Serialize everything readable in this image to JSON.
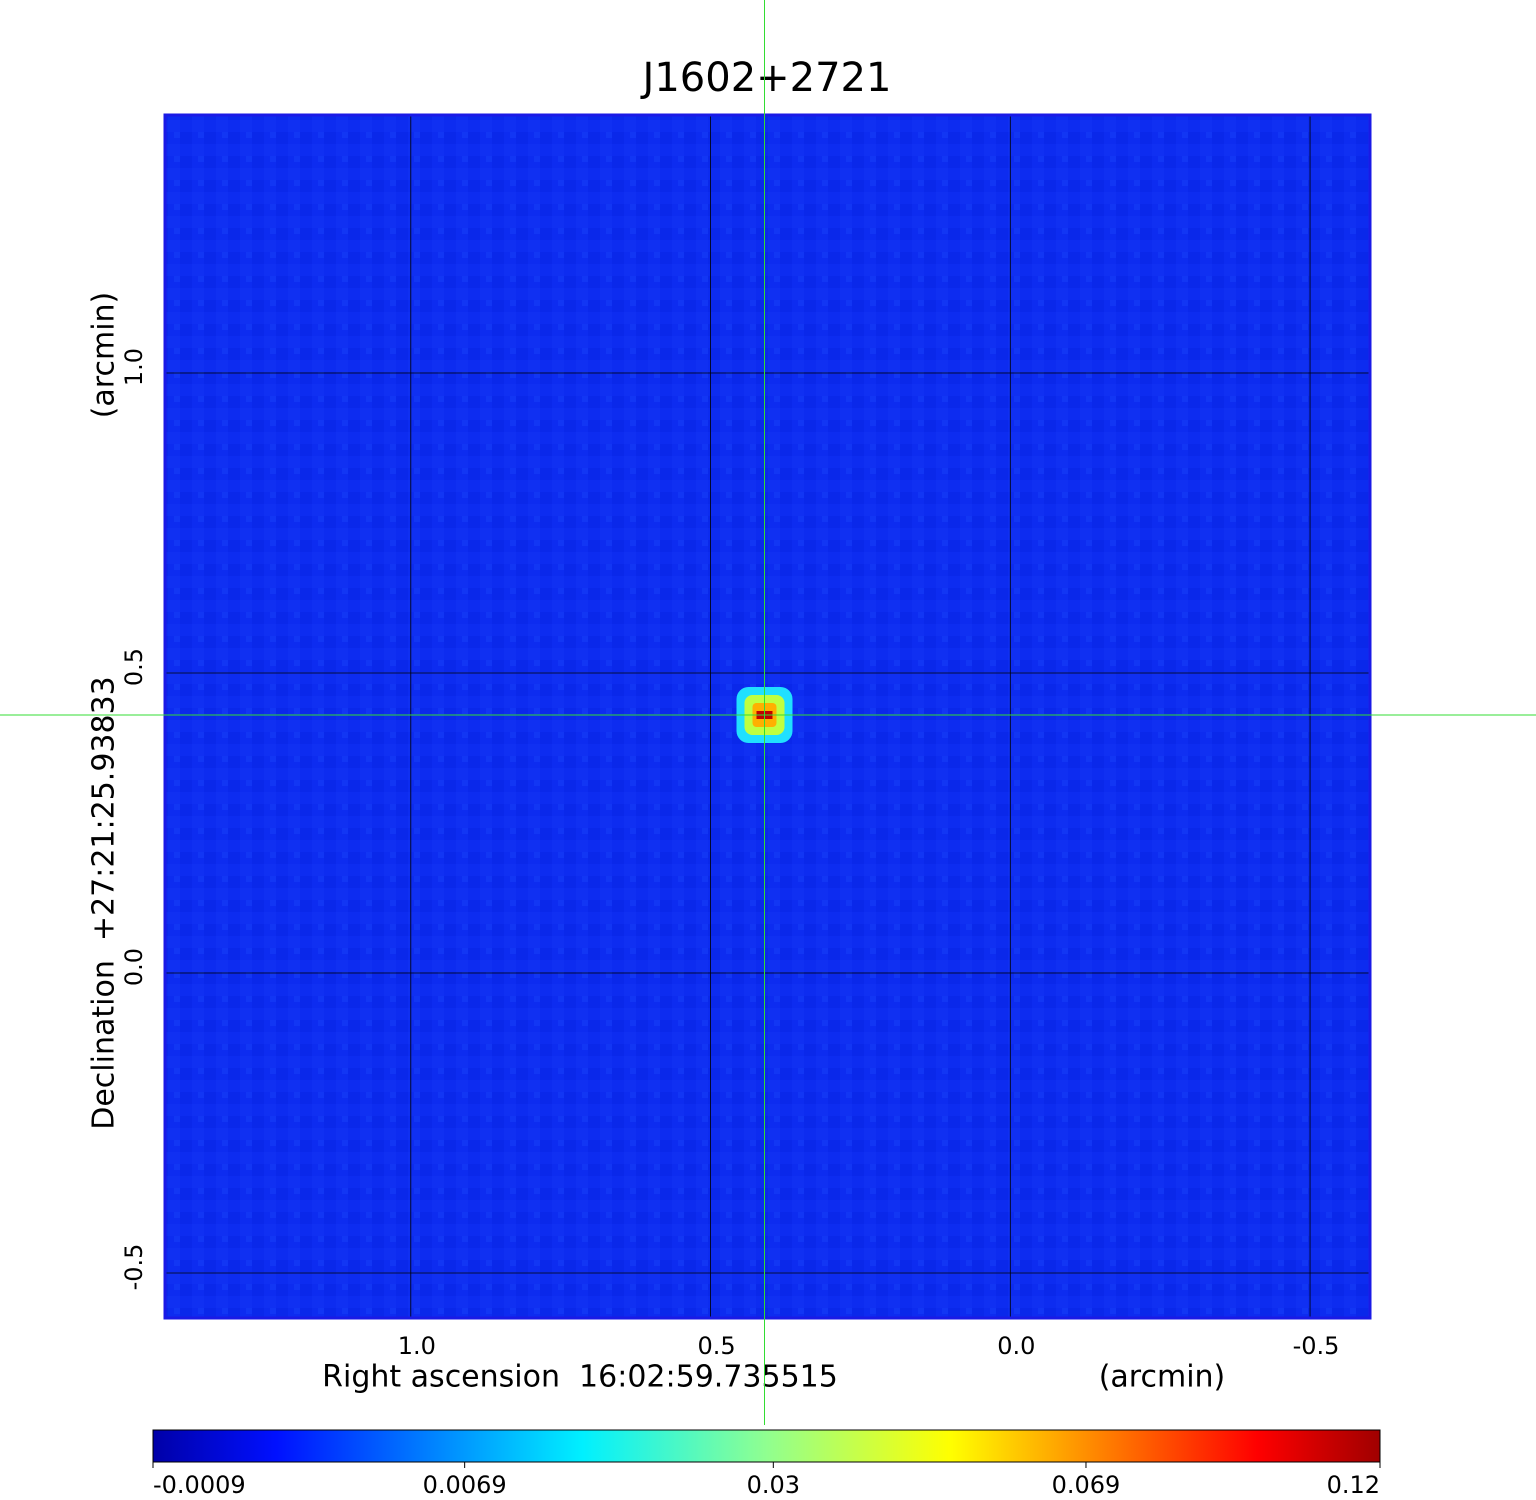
{
  "chart_data": {
    "type": "image",
    "title": "J1602+2721",
    "xlabel": "Right ascension  16:02:59.735515",
    "xunit": "(arcmin)",
    "ylabel": "Declination  +27:21:25.93833",
    "yunit": "(arcmin)",
    "xlim": [
      1.41,
      -0.6
    ],
    "ylim": [
      -0.575,
      1.43
    ],
    "xticks": [
      {
        "value": 1,
        "label": "1.0"
      },
      0.5,
      {
        "value": 0,
        "label": "0.0"
      },
      -0.5
    ],
    "yticks": [
      {
        "value": 1,
        "label": "1.0"
      },
      0.5,
      {
        "value": 0,
        "label": "0.0"
      },
      -0.5
    ],
    "grid": true,
    "marker": {
      "x": 0.41,
      "y": 0.43,
      "color": "#33dd33"
    },
    "source": {
      "x": 0.41,
      "y": 0.43,
      "peak": 0.12
    },
    "clim": [
      -0.0009,
      0.12
    ],
    "colorbar_scale": "sqrt",
    "colorbar_ticks": [
      -0.0009,
      0.0069,
      0.03,
      0.069,
      0.12
    ],
    "title_color": "#1a1ae6"
  }
}
